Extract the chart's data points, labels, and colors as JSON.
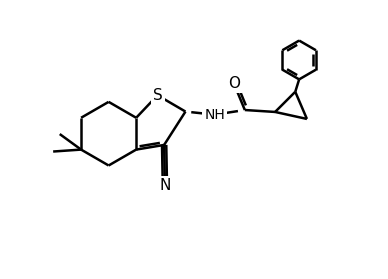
{
  "background": "#ffffff",
  "line_color": "#000000",
  "line_width": 1.8,
  "font_size": 10,
  "figsize": [
    3.88,
    2.79
  ],
  "dpi": 100,
  "xlim": [
    0,
    10
  ],
  "ylim": [
    0,
    7
  ]
}
